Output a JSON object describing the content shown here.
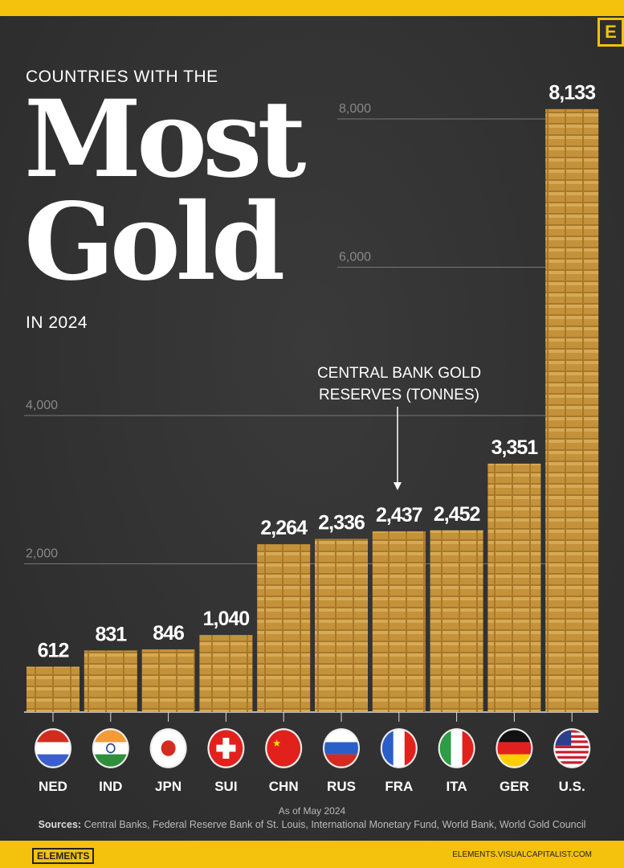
{
  "header": {
    "logo_letter": "E",
    "kicker": "COUNTRIES WITH THE",
    "title_line1": "Most",
    "title_line2": "Gold",
    "subtitle": "IN 2024"
  },
  "chart_data": {
    "type": "bar",
    "ylabel": "CENTRAL BANK GOLD RESERVES (TONNES)",
    "categories": [
      "NED",
      "IND",
      "JPN",
      "SUI",
      "CHN",
      "RUS",
      "FRA",
      "ITA",
      "GER",
      "U.S."
    ],
    "values": [
      612,
      831,
      846,
      1040,
      2264,
      2336,
      2437,
      2452,
      3351,
      8133
    ],
    "value_labels": [
      "612",
      "831",
      "846",
      "1,040",
      "2,264",
      "2,336",
      "2,437",
      "2,452",
      "3,351",
      "8,133"
    ],
    "yticks": [
      2000,
      4000,
      6000,
      8000
    ],
    "ytick_labels": [
      "2,000",
      "4,000",
      "6,000",
      "8,000"
    ],
    "ylim": [
      0,
      8000
    ],
    "grid": true,
    "bar_color": "#b8862d",
    "annotation": {
      "line1": "CENTRAL BANK GOLD",
      "line2": "RESERVES (TONNES)",
      "points_to": "FRA"
    }
  },
  "flags": [
    "netherlands-flag",
    "india-flag",
    "japan-flag",
    "switzerland-flag",
    "china-flag",
    "russia-flag",
    "france-flag",
    "italy-flag",
    "germany-flag",
    "usa-flag"
  ],
  "footer": {
    "as_of": "As of May 2024",
    "sources_label": "Sources:",
    "sources": "Central Banks, Federal Reserve Bank of St. Louis, International Monetary Fund, World Bank, World Gold Council",
    "brand": "ELEMENTS",
    "url": "ELEMENTS.VISUALCAPITALIST.COM"
  },
  "colors": {
    "background": "#2e2e2e",
    "frame": "#f4c20d",
    "text": "#ffffff"
  }
}
